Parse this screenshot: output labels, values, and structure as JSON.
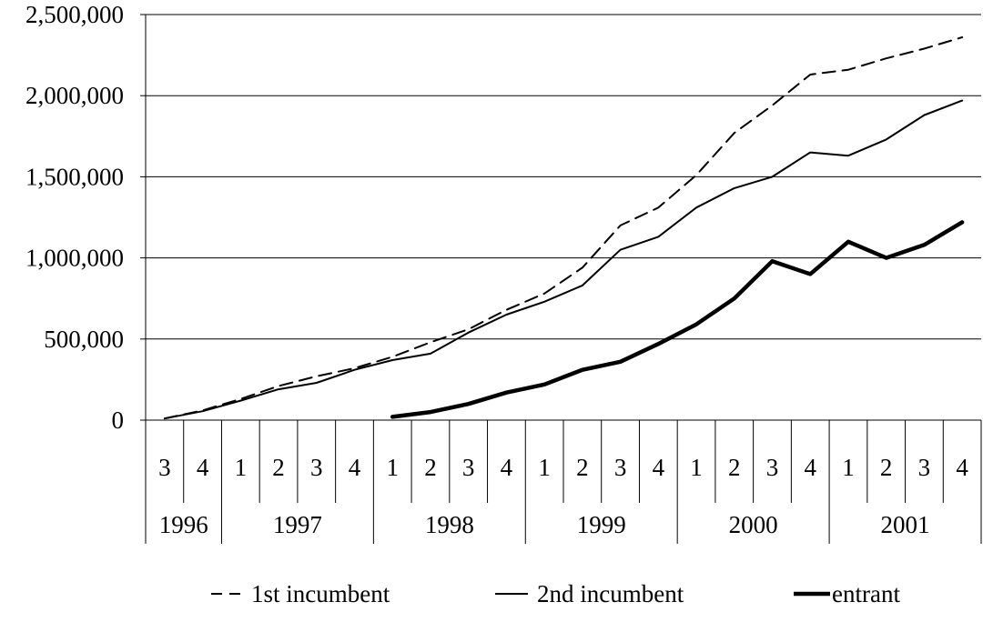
{
  "chart_data": {
    "type": "line",
    "title": "",
    "xlabel": "",
    "ylabel": "",
    "ylim": [
      0,
      2500000
    ],
    "y_ticks": [
      "0",
      "500,000",
      "1,000,000",
      "1,500,000",
      "2,000,000",
      "2,500,000"
    ],
    "grid": "horizontal",
    "legend_position": "bottom",
    "categories": [
      "3",
      "4",
      "1",
      "2",
      "3",
      "4",
      "1",
      "2",
      "3",
      "4",
      "1",
      "2",
      "3",
      "4",
      "1",
      "2",
      "3",
      "4",
      "1",
      "2",
      "3",
      "4"
    ],
    "year_groups": [
      {
        "label": "1996",
        "span": 2
      },
      {
        "label": "1997",
        "span": 4
      },
      {
        "label": "1998",
        "span": 4
      },
      {
        "label": "1999",
        "span": 4
      },
      {
        "label": "2000",
        "span": 4
      },
      {
        "label": "2001",
        "span": 4
      }
    ],
    "series": [
      {
        "name": "1st incumbent",
        "style": "dashed",
        "color": "#000000",
        "values": [
          10000,
          60000,
          130000,
          210000,
          270000,
          320000,
          390000,
          480000,
          560000,
          680000,
          780000,
          940000,
          1200000,
          1310000,
          1510000,
          1770000,
          1940000,
          2130000,
          2160000,
          2230000,
          2290000,
          2360000
        ]
      },
      {
        "name": "2nd incumbent",
        "style": "thin",
        "color": "#000000",
        "values": [
          10000,
          55000,
          120000,
          190000,
          230000,
          310000,
          370000,
          410000,
          540000,
          650000,
          730000,
          830000,
          1050000,
          1130000,
          1310000,
          1430000,
          1500000,
          1650000,
          1630000,
          1730000,
          1880000,
          1970000
        ]
      },
      {
        "name": "entrant",
        "style": "thick",
        "color": "#000000",
        "values": [
          null,
          null,
          null,
          null,
          null,
          null,
          20000,
          50000,
          100000,
          170000,
          220000,
          310000,
          360000,
          470000,
          590000,
          750000,
          980000,
          900000,
          1100000,
          1000000,
          1080000,
          1220000
        ]
      }
    ]
  }
}
